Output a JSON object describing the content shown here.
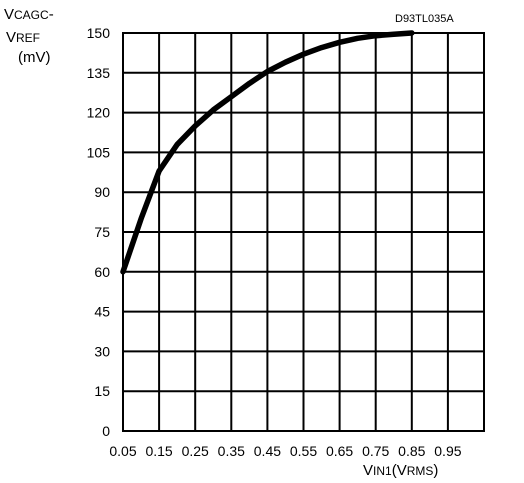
{
  "chart_data": {
    "type": "line",
    "code": "D93TL035A",
    "ylabel": {
      "main1": "V",
      "sub1": "CAGC",
      "suffix1": "-",
      "main2": "V",
      "sub2": "REF",
      "unit": "(mV)"
    },
    "xlabel": {
      "main1": "V",
      "sub1": "IN1",
      "mid": "(V",
      "sub2": "RMS",
      "end": ")"
    },
    "x_ticks": [
      "0.05",
      "0.15",
      "0.25",
      "0.35",
      "0.45",
      "0.55",
      "0.65",
      "0.75",
      "0.85",
      "0.95"
    ],
    "y_ticks": [
      "0",
      "15",
      "30",
      "45",
      "60",
      "75",
      "90",
      "105",
      "120",
      "135",
      "150"
    ],
    "xlim": [
      0.05,
      1.05
    ],
    "ylim": [
      0,
      150
    ],
    "grid": true,
    "series": [
      {
        "x": [
          0.05,
          0.1,
          0.15,
          0.2,
          0.25,
          0.3,
          0.35,
          0.4,
          0.45,
          0.5,
          0.55,
          0.6,
          0.65,
          0.7,
          0.75,
          0.8,
          0.85
        ],
        "y": [
          60,
          80,
          98,
          108,
          115,
          121,
          126,
          131,
          135.5,
          139,
          142,
          144.5,
          146.5,
          148,
          149,
          149.5,
          150
        ]
      }
    ]
  }
}
